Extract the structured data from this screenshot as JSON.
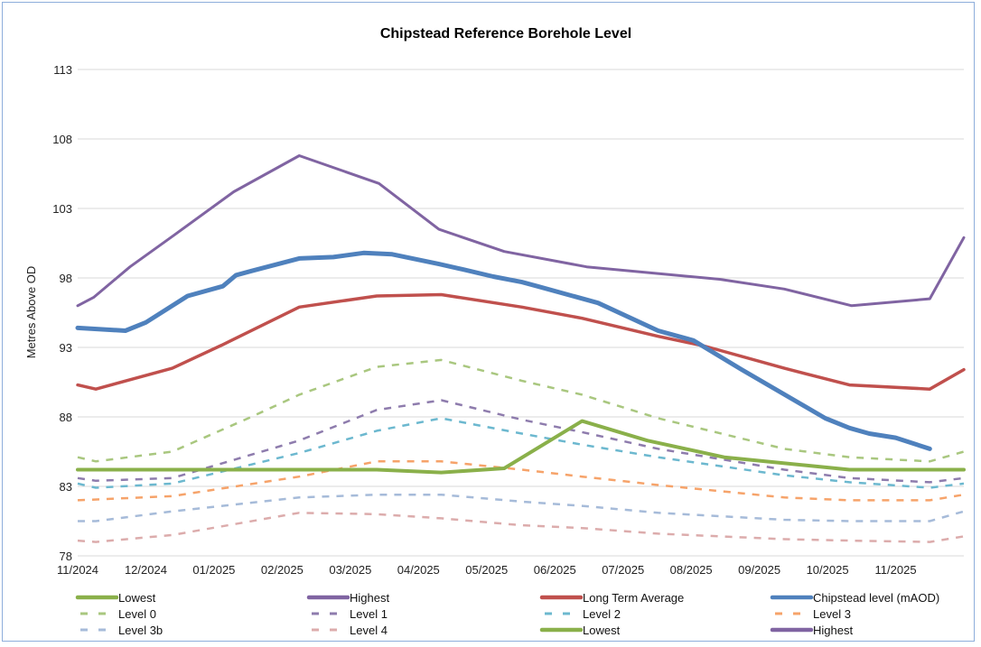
{
  "chart_data": {
    "type": "line",
    "title": "Chipstead Reference Borehole Level",
    "xlabel": "",
    "ylabel": "Metres Above OD",
    "ylim": [
      78,
      113
    ],
    "yticks": [
      "78",
      "83",
      "88",
      "93",
      "98",
      "103",
      "108",
      "113"
    ],
    "xlim": [
      "2024-11-01",
      "2025-12-01"
    ],
    "xticks": [
      "11/2024",
      "12/2024",
      "01/2025",
      "02/2025",
      "03/2025",
      "04/2025",
      "05/2025",
      "06/2025",
      "07/2025",
      "08/2025",
      "09/2025",
      "10/2025",
      "11/2025"
    ],
    "grid": "horizontal",
    "legend_placement": "bottom",
    "series": [
      {
        "name": "Lowest",
        "color": "#8ab04a",
        "style": "solid",
        "width": 4,
        "points": [
          [
            "2024-11-01",
            84.2
          ],
          [
            "2025-03-13",
            84.2
          ],
          [
            "2025-04-11",
            84.0
          ],
          [
            "2025-05-09",
            84.3
          ],
          [
            "2025-06-13",
            87.7
          ],
          [
            "2025-07-12",
            86.3
          ],
          [
            "2025-08-16",
            85.1
          ],
          [
            "2025-10-11",
            84.2
          ],
          [
            "2025-12-01",
            84.2
          ]
        ]
      },
      {
        "name": "Highest",
        "color": "#8064a2",
        "style": "solid",
        "width": 3,
        "points": [
          [
            "2024-11-01",
            96.0
          ],
          [
            "2024-11-08",
            96.6
          ],
          [
            "2024-11-24",
            98.8
          ],
          [
            "2024-12-14",
            101.1
          ],
          [
            "2025-01-10",
            104.2
          ],
          [
            "2025-02-08",
            106.8
          ],
          [
            "2025-03-14",
            104.8
          ],
          [
            "2025-04-10",
            101.5
          ],
          [
            "2025-05-09",
            99.9
          ],
          [
            "2025-06-15",
            98.8
          ],
          [
            "2025-08-14",
            97.9
          ],
          [
            "2025-09-12",
            97.2
          ],
          [
            "2025-10-12",
            96.0
          ],
          [
            "2025-11-16",
            96.5
          ],
          [
            "2025-12-01",
            100.9
          ]
        ]
      },
      {
        "name": "Long Term Average",
        "color": "#c0504d",
        "style": "solid",
        "width": 3.5,
        "points": [
          [
            "2024-11-01",
            90.3
          ],
          [
            "2024-11-09",
            90.0
          ],
          [
            "2024-12-13",
            91.5
          ],
          [
            "2025-01-05",
            93.2
          ],
          [
            "2025-02-08",
            95.9
          ],
          [
            "2025-03-13",
            96.7
          ],
          [
            "2025-04-11",
            96.8
          ],
          [
            "2025-05-17",
            95.9
          ],
          [
            "2025-06-13",
            95.1
          ],
          [
            "2025-07-17",
            93.8
          ],
          [
            "2025-08-07",
            93.1
          ],
          [
            "2025-09-12",
            91.5
          ],
          [
            "2025-10-11",
            90.3
          ],
          [
            "2025-11-16",
            90.0
          ],
          [
            "2025-12-01",
            91.4
          ]
        ]
      },
      {
        "name": "Chipstead level (mAOD)",
        "color": "#4f81bd",
        "style": "solid",
        "width": 5,
        "points": [
          [
            "2024-11-01",
            94.4
          ],
          [
            "2024-11-22",
            94.2
          ],
          [
            "2024-12-01",
            94.8
          ],
          [
            "2024-12-20",
            96.7
          ],
          [
            "2025-01-05",
            97.4
          ],
          [
            "2025-01-11",
            98.2
          ],
          [
            "2025-01-18",
            98.5
          ],
          [
            "2025-02-08",
            99.4
          ],
          [
            "2025-02-22",
            99.5
          ],
          [
            "2025-03-07",
            99.8
          ],
          [
            "2025-03-20",
            99.7
          ],
          [
            "2025-04-10",
            99.0
          ],
          [
            "2025-04-21",
            98.6
          ],
          [
            "2025-05-04",
            98.1
          ],
          [
            "2025-05-17",
            97.7
          ],
          [
            "2025-05-24",
            97.4
          ],
          [
            "2025-06-20",
            96.2
          ],
          [
            "2025-07-17",
            94.2
          ],
          [
            "2025-08-02",
            93.5
          ],
          [
            "2025-08-24",
            91.4
          ],
          [
            "2025-09-30",
            87.9
          ],
          [
            "2025-10-11",
            87.2
          ],
          [
            "2025-10-20",
            86.8
          ],
          [
            "2025-11-01",
            86.5
          ],
          [
            "2025-11-16",
            85.7
          ]
        ]
      },
      {
        "name": "Level 0",
        "color": "#a9c77f",
        "style": "dashed",
        "width": 2.5,
        "points": [
          [
            "2024-11-01",
            85.1
          ],
          [
            "2024-11-09",
            84.8
          ],
          [
            "2024-12-13",
            85.5
          ],
          [
            "2025-01-18",
            88.0
          ],
          [
            "2025-02-08",
            89.6
          ],
          [
            "2025-03-13",
            91.6
          ],
          [
            "2025-04-11",
            92.1
          ],
          [
            "2025-05-17",
            90.6
          ],
          [
            "2025-06-13",
            89.6
          ],
          [
            "2025-07-17",
            87.9
          ],
          [
            "2025-09-12",
            85.7
          ],
          [
            "2025-10-11",
            85.1
          ],
          [
            "2025-11-16",
            84.8
          ],
          [
            "2025-12-01",
            85.5
          ]
        ]
      },
      {
        "name": "Level 1",
        "color": "#8e7cad",
        "style": "dashed",
        "width": 2.5,
        "points": [
          [
            "2024-11-01",
            83.6
          ],
          [
            "2024-11-09",
            83.4
          ],
          [
            "2024-12-13",
            83.6
          ],
          [
            "2025-02-08",
            86.3
          ],
          [
            "2025-03-13",
            88.5
          ],
          [
            "2025-04-11",
            89.2
          ],
          [
            "2025-05-17",
            87.8
          ],
          [
            "2025-06-13",
            86.9
          ],
          [
            "2025-07-17",
            85.7
          ],
          [
            "2025-09-12",
            84.2
          ],
          [
            "2025-10-11",
            83.6
          ],
          [
            "2025-11-16",
            83.3
          ],
          [
            "2025-12-01",
            83.6
          ]
        ]
      },
      {
        "name": "Level 2",
        "color": "#6cb8cf",
        "style": "dashed",
        "width": 2.5,
        "points": [
          [
            "2024-11-01",
            83.2
          ],
          [
            "2024-11-09",
            82.9
          ],
          [
            "2024-12-13",
            83.2
          ],
          [
            "2025-02-08",
            85.4
          ],
          [
            "2025-03-13",
            87.0
          ],
          [
            "2025-04-11",
            87.9
          ],
          [
            "2025-05-17",
            86.8
          ],
          [
            "2025-06-13",
            86.0
          ],
          [
            "2025-07-17",
            85.1
          ],
          [
            "2025-09-12",
            83.8
          ],
          [
            "2025-10-11",
            83.3
          ],
          [
            "2025-11-16",
            82.9
          ],
          [
            "2025-12-01",
            83.2
          ]
        ]
      },
      {
        "name": "Level 3",
        "color": "#f6a36a",
        "style": "dashed",
        "width": 2.5,
        "points": [
          [
            "2024-11-01",
            82.0
          ],
          [
            "2024-12-13",
            82.3
          ],
          [
            "2025-02-08",
            83.7
          ],
          [
            "2025-03-13",
            84.8
          ],
          [
            "2025-04-11",
            84.8
          ],
          [
            "2025-05-17",
            84.2
          ],
          [
            "2025-06-13",
            83.7
          ],
          [
            "2025-07-17",
            83.1
          ],
          [
            "2025-09-12",
            82.2
          ],
          [
            "2025-10-11",
            82.0
          ],
          [
            "2025-11-16",
            82.0
          ],
          [
            "2025-12-01",
            82.4
          ]
        ]
      },
      {
        "name": "Level 3b",
        "color": "#a6bbd9",
        "style": "dashed",
        "width": 2.5,
        "points": [
          [
            "2024-11-01",
            80.5
          ],
          [
            "2024-11-09",
            80.5
          ],
          [
            "2024-12-13",
            81.2
          ],
          [
            "2025-02-08",
            82.2
          ],
          [
            "2025-03-13",
            82.4
          ],
          [
            "2025-04-11",
            82.4
          ],
          [
            "2025-05-17",
            81.9
          ],
          [
            "2025-06-13",
            81.6
          ],
          [
            "2025-07-17",
            81.1
          ],
          [
            "2025-09-12",
            80.6
          ],
          [
            "2025-10-11",
            80.5
          ],
          [
            "2025-11-16",
            80.5
          ],
          [
            "2025-12-01",
            81.2
          ]
        ]
      },
      {
        "name": "Level 4",
        "color": "#dcacac",
        "style": "dashed",
        "width": 2.5,
        "points": [
          [
            "2024-11-01",
            79.1
          ],
          [
            "2024-11-09",
            79.0
          ],
          [
            "2024-12-13",
            79.5
          ],
          [
            "2025-02-08",
            81.1
          ],
          [
            "2025-03-13",
            81.0
          ],
          [
            "2025-04-11",
            80.7
          ],
          [
            "2025-05-17",
            80.2
          ],
          [
            "2025-06-13",
            80.0
          ],
          [
            "2025-07-17",
            79.6
          ],
          [
            "2025-09-12",
            79.2
          ],
          [
            "2025-10-11",
            79.1
          ],
          [
            "2025-11-16",
            79.0
          ],
          [
            "2025-12-01",
            79.4
          ]
        ]
      }
    ],
    "legend": [
      {
        "label": "Lowest",
        "color": "#8ab04a",
        "style": "solid"
      },
      {
        "label": "Highest",
        "color": "#8064a2",
        "style": "solid"
      },
      {
        "label": "Long Term Average",
        "color": "#c0504d",
        "style": "solid"
      },
      {
        "label": "Chipstead level (mAOD)",
        "color": "#4f81bd",
        "style": "solid"
      },
      {
        "label": "Level 0",
        "color": "#a9c77f",
        "style": "dashed"
      },
      {
        "label": "Level 1",
        "color": "#8e7cad",
        "style": "dashed"
      },
      {
        "label": "Level 2",
        "color": "#6cb8cf",
        "style": "dashed"
      },
      {
        "label": "Level 3",
        "color": "#f6a36a",
        "style": "dashed"
      },
      {
        "label": "Level 3b",
        "color": "#a6bbd9",
        "style": "dashed"
      },
      {
        "label": "Level 4",
        "color": "#dcacac",
        "style": "dashed"
      },
      {
        "label": "Lowest",
        "color": "#8ab04a",
        "style": "solid"
      },
      {
        "label": "Highest",
        "color": "#8064a2",
        "style": "solid"
      }
    ]
  }
}
